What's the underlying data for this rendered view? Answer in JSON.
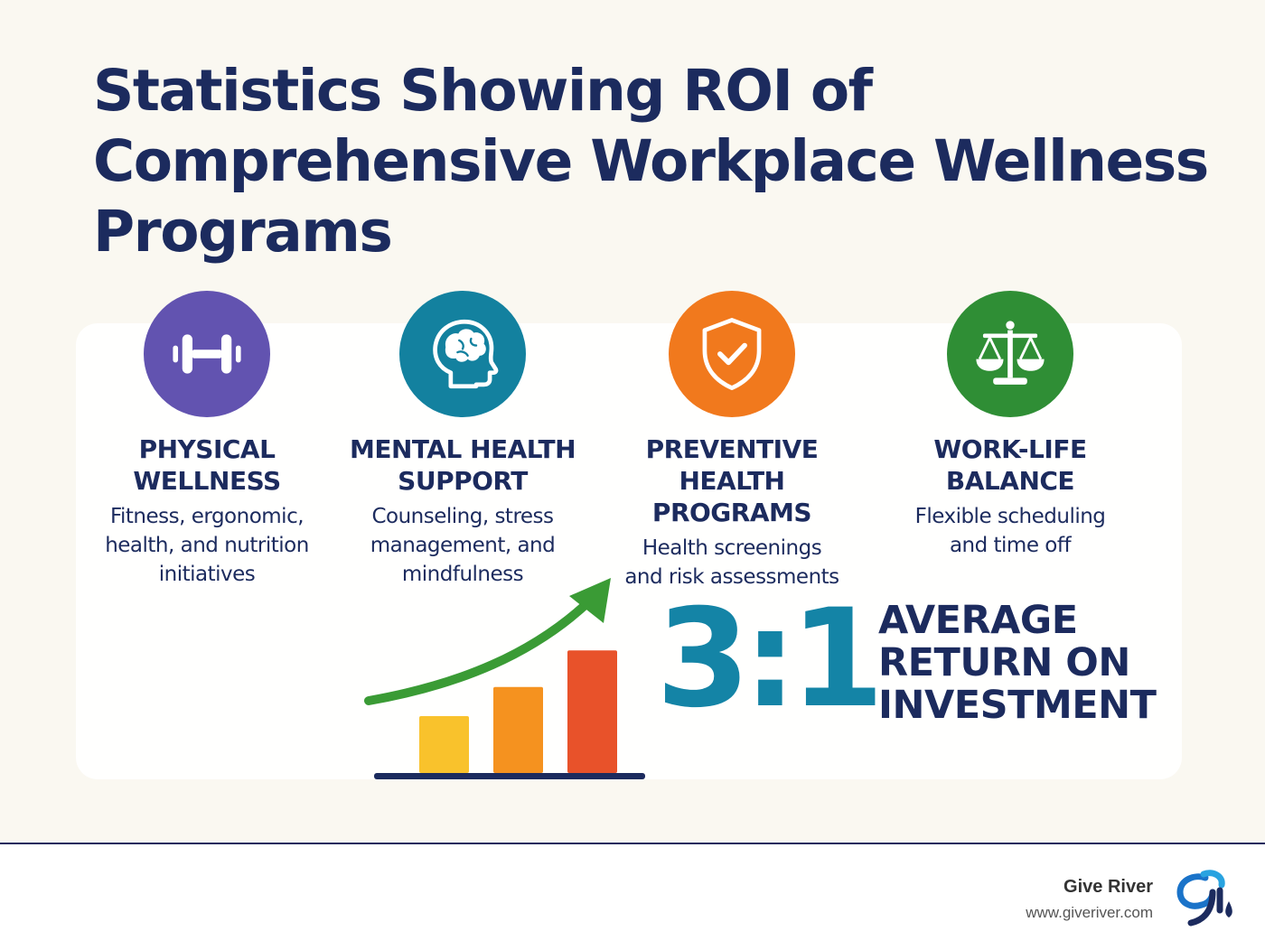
{
  "title_lines": [
    "Statistics Showing ROI of",
    "Comprehensive Workplace Wellness",
    "Programs"
  ],
  "pillars": [
    {
      "title_lines": [
        "PHYSICAL",
        "WELLNESS"
      ],
      "desc_lines": [
        "Fitness, ergonomic,",
        "health, and nutrition",
        "initiatives"
      ],
      "icon": "dumbbell-icon",
      "color": "#6253b0"
    },
    {
      "title_lines": [
        "MENTAL HEALTH",
        "SUPPORT"
      ],
      "desc_lines": [
        "Counseling, stress",
        "management, and",
        "mindfulness"
      ],
      "icon": "brain-head-icon",
      "color": "#13819f"
    },
    {
      "title_lines": [
        "PREVENTIVE",
        "HEALTH PROGRAMS"
      ],
      "desc_lines": [
        "Health screenings",
        "and risk assessments"
      ],
      "icon": "shield-check-icon",
      "color": "#f1791d"
    },
    {
      "title_lines": [
        "WORK-LIFE",
        "BALANCE"
      ],
      "desc_lines": [
        "Flexible scheduling",
        "and time off"
      ],
      "icon": "balance-scale-icon",
      "color": "#2f8e35"
    }
  ],
  "roi": {
    "value": "3:1",
    "label_lines": [
      "AVERAGE",
      "RETURN ON",
      "INVESTMENT"
    ],
    "color": "#1484a6"
  },
  "growth_chart": {
    "bar_levels": [
      0.45,
      0.68,
      0.97
    ],
    "bar_colors": [
      "#f9c22c",
      "#f5921f",
      "#e8522a"
    ],
    "arrow_color": "#3a9b35",
    "icon": "growth-arrow-icon"
  },
  "footer": {
    "brand_name": "Give River",
    "brand_url": "www.giveriver.com",
    "logo": "give-river-logo-icon"
  },
  "colors": {
    "title": "#1c2b5e",
    "background": "#faf8f1"
  }
}
